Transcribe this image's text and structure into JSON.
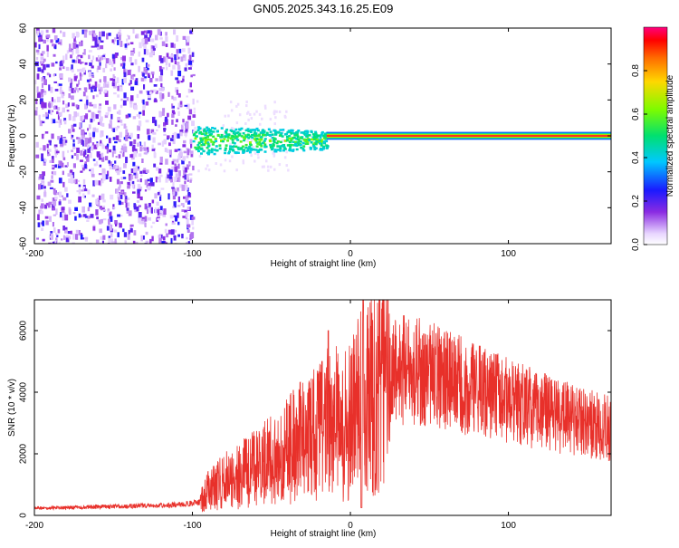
{
  "title": "GN05.2025.343.16.25.E09",
  "colors": {
    "background": "#ffffff",
    "axis": "#000000",
    "snr_line": "#e8302a",
    "spec_low": "#7a00ff",
    "spec_track_core": "#e60000"
  },
  "chart_data": [
    {
      "type": "heatmap",
      "title": "GN05.2025.343.16.25.E09",
      "xlabel": "Height of straight line (km)",
      "ylabel": "Frequency (Hz)",
      "xlim": [
        -200,
        165
      ],
      "ylim": [
        -60,
        60
      ],
      "xticks": [
        "-200",
        "-100",
        "0",
        "100"
      ],
      "yticks": [
        "-60",
        "-40",
        "-20",
        "0",
        "20",
        "40",
        "60"
      ],
      "colorbar": {
        "label": "Normalized spectral amplitude",
        "range": [
          0.0,
          1.0
        ],
        "ticks": [
          "0.0",
          "0.2",
          "0.4",
          "0.6",
          "0.8"
        ],
        "colormap": "purple-blue-cyan-green-yellow-orange-red-magenta"
      },
      "features": [
        {
          "region": "noise",
          "x_range": [
            -200,
            -100
          ],
          "freq_range": [
            -60,
            60
          ],
          "amplitude": [
            0.05,
            0.25
          ]
        },
        {
          "region": "emerging signal",
          "x_range": [
            -100,
            -15
          ],
          "freq_center": -2,
          "freq_halfwidth": 5,
          "amplitude": [
            0.3,
            0.6
          ]
        },
        {
          "region": "stable tone",
          "x_range": [
            -15,
            165
          ],
          "freq_center": 0,
          "freq_halfwidth": 2,
          "amplitude": [
            0.9,
            1.0
          ]
        }
      ]
    },
    {
      "type": "line",
      "xlabel": "Height of straight line (km)",
      "ylabel": "SNR (10 * v/v)",
      "xlim": [
        -200,
        165
      ],
      "ylim": [
        0,
        7000
      ],
      "xticks": [
        "-200",
        "-100",
        "0",
        "100"
      ],
      "yticks": [
        "0",
        "2000",
        "4000",
        "6000"
      ],
      "series": [
        {
          "name": "SNR",
          "x": [
            -200,
            -180,
            -160,
            -140,
            -120,
            -105,
            -95,
            -90,
            -80,
            -70,
            -60,
            -50,
            -40,
            -30,
            -20,
            -15,
            -10,
            -5,
            0,
            5,
            8,
            10,
            15,
            20,
            30,
            40,
            50,
            60,
            80,
            100,
            120,
            140,
            165
          ],
          "values": [
            230,
            250,
            280,
            300,
            320,
            360,
            450,
            800,
            1100,
            1300,
            1500,
            1800,
            2100,
            2400,
            2700,
            3100,
            3000,
            2900,
            3100,
            3500,
            3800,
            3700,
            4000,
            4400,
            4700,
            4750,
            4650,
            4400,
            4050,
            3700,
            3400,
            3100,
            2800
          ],
          "peaks": [
            {
              "x": 8,
              "y": 7000
            },
            {
              "x": -14,
              "y": 6000
            },
            {
              "x": -18,
              "y": 5000
            }
          ]
        }
      ]
    }
  ]
}
